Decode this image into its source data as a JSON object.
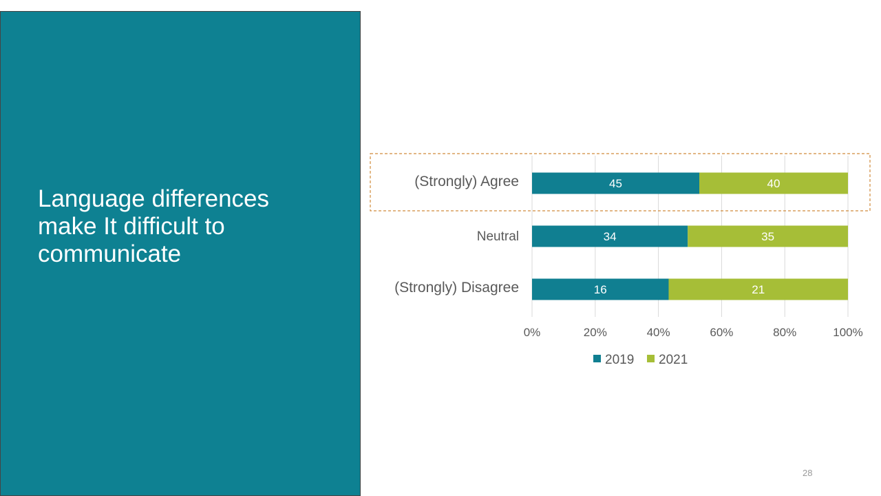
{
  "slide": {
    "title": "Language differences make It difficult to communicate",
    "page_number": "28"
  },
  "colors": {
    "panel": "#0e8192",
    "series_2019": "#107f91",
    "series_2021": "#a6be37"
  },
  "chart_data": {
    "type": "bar",
    "orientation": "horizontal",
    "stacking": "percent",
    "categories": [
      "(Strongly)  Agree",
      "Neutral",
      "(Strongly)  Disagree"
    ],
    "series": [
      {
        "name": "2019",
        "values": [
          45,
          34,
          16
        ],
        "color": "#107f91"
      },
      {
        "name": "2021",
        "values": [
          40,
          35,
          21
        ],
        "color": "#a6be37"
      }
    ],
    "x_ticks": [
      "0%",
      "20%",
      "40%",
      "60%",
      "80%",
      "100%"
    ],
    "xlim": [
      0,
      100
    ],
    "grid": true,
    "legend": "bottom",
    "highlight_category": "(Strongly)  Agree"
  }
}
